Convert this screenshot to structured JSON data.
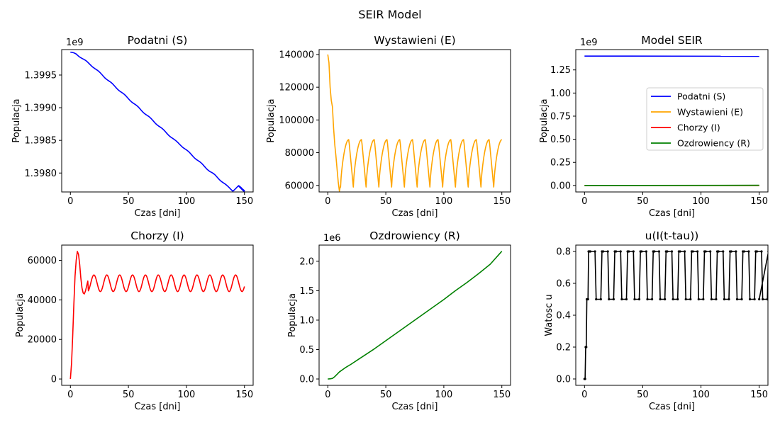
{
  "figure": {
    "suptitle": "SEIR Model"
  },
  "chart_data": [
    {
      "id": "S",
      "type": "line",
      "title": "Podatni (S)",
      "xlabel": "Czas [dni]",
      "ylabel": "Populacja",
      "offset_text": "1e9",
      "scale": 1000000000.0,
      "xlim": [
        -7.5,
        157.5
      ],
      "ylim": [
        1.39771,
        1.39989
      ],
      "xticks": [
        0,
        50,
        100,
        150
      ],
      "xtick_labels": [
        "0",
        "50",
        "100",
        "150"
      ],
      "yticks": [
        1.398,
        1.3985,
        1.399,
        1.3995
      ],
      "ytick_labels": [
        "1.3980",
        "1.3985",
        "1.3990",
        "1.3995"
      ],
      "series": [
        {
          "color": "#0000ff",
          "x": [
            0,
            5,
            10,
            15,
            20,
            25,
            30,
            35,
            40,
            45,
            50,
            55,
            60,
            65,
            70,
            75,
            80,
            85,
            90,
            95,
            100,
            105,
            110,
            115,
            120,
            125,
            130,
            135,
            140,
            145,
            150
          ],
          "y": [
            1.39985,
            1.39982,
            1.39976,
            1.39969,
            1.39962,
            1.39954,
            1.39946,
            1.39938,
            1.3993,
            1.39922,
            1.39914,
            1.39906,
            1.39898,
            1.3989,
            1.39882,
            1.39874,
            1.39866,
            1.39858,
            1.3985,
            1.39843,
            1.39835,
            1.39827,
            1.39819,
            1.39811,
            1.39803,
            1.39796,
            1.39788,
            1.3978,
            1.39773,
            1.3978,
            1.39773
          ]
        }
      ]
    },
    {
      "id": "E",
      "type": "line",
      "title": "Wystawieni (E)",
      "xlabel": "Czas [dni]",
      "ylabel": "Populacja",
      "xlim": [
        -7.5,
        157.5
      ],
      "ylim": [
        56000,
        143000
      ],
      "xticks": [
        0,
        50,
        100,
        150
      ],
      "xtick_labels": [
        "0",
        "50",
        "100",
        "150"
      ],
      "yticks": [
        60000,
        80000,
        100000,
        120000,
        140000
      ],
      "ytick_labels": [
        "60000",
        "80000",
        "100000",
        "120000",
        "140000"
      ],
      "series": [
        {
          "color": "#ffa500",
          "x": [
            0,
            1,
            2,
            3,
            4,
            5,
            6,
            7,
            8,
            9,
            10,
            11
          ],
          "y": [
            140000,
            135000,
            120000,
            112000,
            108000,
            95000,
            85000,
            78000,
            70000,
            62000,
            56500,
            60000
          ]
        }
      ]
    },
    {
      "id": "SEIR",
      "type": "line",
      "title": "Model SEIR",
      "xlabel": "Czas [dni]",
      "ylabel": "Populacja",
      "offset_text": "1e9",
      "scale": 1000000000.0,
      "xlim": [
        -7.5,
        157.5
      ],
      "ylim": [
        -0.07,
        1.47
      ],
      "xticks": [
        0,
        50,
        100,
        150
      ],
      "xtick_labels": [
        "0",
        "50",
        "100",
        "150"
      ],
      "yticks": [
        0,
        0.25,
        0.5,
        0.75,
        1.0,
        1.25
      ],
      "ytick_labels": [
        "0.00",
        "0.25",
        "0.50",
        "0.75",
        "1.00",
        "1.25"
      ],
      "legend_position": "center-right",
      "series": [
        {
          "name": "Podatni (S)",
          "color": "#0000ff",
          "x": [
            0,
            150
          ],
          "y": [
            1.3999,
            1.3977
          ]
        },
        {
          "name": "Wystawieni (E)",
          "color": "#ffa500",
          "x": [
            0,
            150
          ],
          "y": [
            0.00014,
            8e-05
          ]
        },
        {
          "name": "Chorzy (I)",
          "color": "#ff0000",
          "x": [
            0,
            150
          ],
          "y": [
            0.0,
            4.5e-05
          ]
        },
        {
          "name": "Ozdrowiency (R)",
          "color": "#008000",
          "x": [
            0,
            150
          ],
          "y": [
            0.0,
            0.00217
          ]
        }
      ]
    },
    {
      "id": "I",
      "type": "line",
      "title": "Chorzy (I)",
      "xlabel": "Czas [dni]",
      "ylabel": "Populacja",
      "xlim": [
        -7.5,
        157.5
      ],
      "ylim": [
        -3200,
        67700
      ],
      "xticks": [
        0,
        50,
        100,
        150
      ],
      "xtick_labels": [
        "0",
        "50",
        "100",
        "150"
      ],
      "yticks": [
        0,
        20000,
        40000,
        60000
      ],
      "ytick_labels": [
        "0",
        "20000",
        "40000",
        "60000"
      ],
      "series": [
        {
          "color": "#ff0000",
          "x": [
            0,
            1,
            2,
            3,
            4,
            5,
            6,
            7,
            8,
            9,
            10,
            11,
            12,
            13,
            14,
            15
          ],
          "y": [
            0,
            8000,
            22000,
            38000,
            52000,
            60000,
            64500,
            63000,
            58000,
            51000,
            46000,
            43500,
            43000,
            44500,
            47000,
            49500
          ]
        }
      ]
    },
    {
      "id": "R",
      "type": "line",
      "title": "Ozdrowiency (R)",
      "xlabel": "Czas [dni]",
      "ylabel": "Populacja",
      "offset_text": "1e6",
      "scale": 1000000.0,
      "xlim": [
        -7.5,
        157.5
      ],
      "ylim": [
        -0.108,
        2.275
      ],
      "xticks": [
        0,
        50,
        100,
        150
      ],
      "xtick_labels": [
        "0",
        "50",
        "100",
        "150"
      ],
      "yticks": [
        0,
        0.5,
        1.0,
        1.5,
        2.0
      ],
      "ytick_labels": [
        "0.0",
        "0.5",
        "1.0",
        "1.5",
        "2.0"
      ],
      "series": [
        {
          "color": "#008000",
          "x": [
            0,
            2,
            4,
            6,
            8,
            10,
            15,
            20,
            30,
            40,
            50,
            60,
            70,
            80,
            90,
            100,
            110,
            120,
            130,
            140,
            150
          ],
          "y": [
            0,
            0.002,
            0.01,
            0.04,
            0.08,
            0.12,
            0.19,
            0.25,
            0.38,
            0.51,
            0.65,
            0.79,
            0.93,
            1.07,
            1.21,
            1.35,
            1.5,
            1.64,
            1.79,
            1.95,
            2.17
          ]
        }
      ]
    },
    {
      "id": "u",
      "type": "line",
      "title": "u(I(t-tau))",
      "xlabel": "Czas [dni]",
      "ylabel": "Watosc u",
      "xlim": [
        -7.5,
        157.5
      ],
      "ylim": [
        -0.04,
        0.84
      ],
      "xticks": [
        0,
        50,
        100,
        150
      ],
      "xtick_labels": [
        "0",
        "50",
        "100",
        "150"
      ],
      "yticks": [
        0,
        0.2,
        0.4,
        0.6,
        0.8
      ],
      "ytick_labels": [
        "0.0",
        "0.2",
        "0.4",
        "0.6",
        "0.8"
      ],
      "series": [
        {
          "color": "#000000",
          "x": [
            0,
            0.5,
            1,
            1.5,
            2,
            2.5,
            3,
            3.5,
            4,
            4.5
          ],
          "y": [
            0,
            0,
            0.2,
            0.2,
            0.5,
            0.5,
            0.5,
            0.8,
            0.8,
            0.8
          ]
        }
      ]
    }
  ]
}
